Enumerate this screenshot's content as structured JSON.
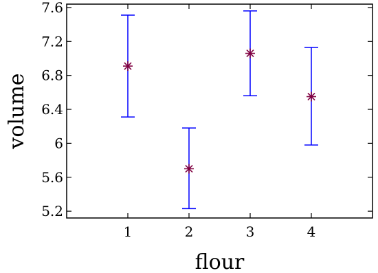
{
  "chart_data": {
    "type": "errorbar",
    "xlabel": "flour",
    "ylabel": "volume",
    "xlim": [
      0,
      5
    ],
    "ylim": [
      5.12,
      7.64
    ],
    "x_ticks": [
      1,
      2,
      3,
      4
    ],
    "x_tick_labels": [
      "1",
      "2",
      "3",
      "4"
    ],
    "y_ticks": [
      5.2,
      5.6,
      6.0,
      6.4,
      6.8,
      7.2,
      7.6
    ],
    "y_tick_labels": [
      "5.2",
      "5.6",
      "6",
      "6.4",
      "6.8",
      "7.2",
      "7.6"
    ],
    "grid": false,
    "points": [
      {
        "x": 1,
        "y": 6.91,
        "low": 6.31,
        "high": 7.51
      },
      {
        "x": 2,
        "y": 5.7,
        "low": 5.23,
        "high": 6.18
      },
      {
        "x": 3,
        "y": 7.06,
        "low": 6.56,
        "high": 7.56
      },
      {
        "x": 4,
        "y": 6.55,
        "low": 5.98,
        "high": 7.13
      }
    ],
    "colors": {
      "errorbar": "#0000ff",
      "marker": "#800040",
      "axes": "#000000"
    }
  }
}
